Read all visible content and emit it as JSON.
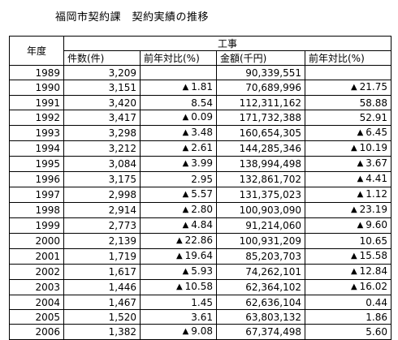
{
  "title": "福岡市契約課　契約実績の推移",
  "table": {
    "year_header": "年度",
    "group_header": "工事",
    "col_headers": [
      "件数(件)",
      "前年対比(%)",
      "金額(千円)",
      "前年対比(%)"
    ],
    "decrease_marker": "▲",
    "rows": [
      {
        "year": "1989",
        "count": "3,209",
        "count_pct": "",
        "count_neg": false,
        "amount": "90,339,551",
        "amount_pct": "",
        "amount_neg": false
      },
      {
        "year": "1990",
        "count": "3,151",
        "count_pct": "1.81",
        "count_neg": true,
        "amount": "70,689,996",
        "amount_pct": "21.75",
        "amount_neg": true
      },
      {
        "year": "1991",
        "count": "3,420",
        "count_pct": "8.54",
        "count_neg": false,
        "amount": "112,311,162",
        "amount_pct": "58.88",
        "amount_neg": false
      },
      {
        "year": "1992",
        "count": "3,417",
        "count_pct": "0.09",
        "count_neg": true,
        "amount": "171,732,388",
        "amount_pct": "52.91",
        "amount_neg": false
      },
      {
        "year": "1993",
        "count": "3,298",
        "count_pct": "3.48",
        "count_neg": true,
        "amount": "160,654,305",
        "amount_pct": "6.45",
        "amount_neg": true
      },
      {
        "year": "1994",
        "count": "3,212",
        "count_pct": "2.61",
        "count_neg": true,
        "amount": "144,285,346",
        "amount_pct": "10.19",
        "amount_neg": true
      },
      {
        "year": "1995",
        "count": "3,084",
        "count_pct": "3.99",
        "count_neg": true,
        "amount": "138,994,498",
        "amount_pct": "3.67",
        "amount_neg": true
      },
      {
        "year": "1996",
        "count": "3,175",
        "count_pct": "2.95",
        "count_neg": false,
        "amount": "132,861,702",
        "amount_pct": "4.41",
        "amount_neg": true
      },
      {
        "year": "1997",
        "count": "2,998",
        "count_pct": "5.57",
        "count_neg": true,
        "amount": "131,375,023",
        "amount_pct": "1.12",
        "amount_neg": true
      },
      {
        "year": "1998",
        "count": "2,914",
        "count_pct": "2.80",
        "count_neg": true,
        "amount": "100,903,090",
        "amount_pct": "23.19",
        "amount_neg": true
      },
      {
        "year": "1999",
        "count": "2,773",
        "count_pct": "4.84",
        "count_neg": true,
        "amount": "91,214,060",
        "amount_pct": "9.60",
        "amount_neg": true
      },
      {
        "year": "2000",
        "count": "2,139",
        "count_pct": "22.86",
        "count_neg": true,
        "amount": "100,931,209",
        "amount_pct": "10.65",
        "amount_neg": false
      },
      {
        "year": "2001",
        "count": "1,719",
        "count_pct": "19.64",
        "count_neg": true,
        "amount": "85,203,703",
        "amount_pct": "15.58",
        "amount_neg": true
      },
      {
        "year": "2002",
        "count": "1,617",
        "count_pct": "5.93",
        "count_neg": true,
        "amount": "74,262,101",
        "amount_pct": "12.84",
        "amount_neg": true
      },
      {
        "year": "2003",
        "count": "1,446",
        "count_pct": "10.58",
        "count_neg": true,
        "amount": "62,364,102",
        "amount_pct": "16.02",
        "amount_neg": true
      },
      {
        "year": "2004",
        "count": "1,467",
        "count_pct": "1.45",
        "count_neg": false,
        "amount": "62,636,104",
        "amount_pct": "0.44",
        "amount_neg": false
      },
      {
        "year": "2005",
        "count": "1,520",
        "count_pct": "3.61",
        "count_neg": false,
        "amount": "63,803,132",
        "amount_pct": "1.86",
        "amount_neg": false
      },
      {
        "year": "2006",
        "count": "1,382",
        "count_pct": "9.08",
        "count_neg": true,
        "amount": "67,374,498",
        "amount_pct": "5.60",
        "amount_neg": false
      }
    ]
  }
}
